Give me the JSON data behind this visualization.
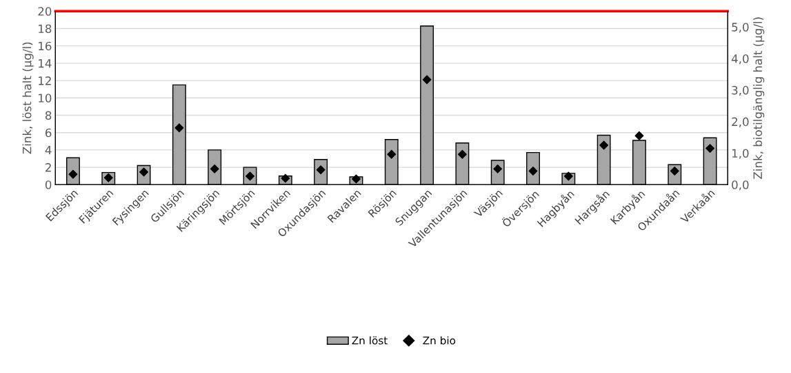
{
  "chart_data": {
    "type": "bar",
    "categories": [
      "Edssjön",
      "Fjäturen",
      "Fysingen",
      "Gullsjön",
      "Käringsjön",
      "Mörtsjön",
      "Norrviken",
      "Oxundasjön",
      "Ravalen",
      "Rösjön",
      "Snuggan",
      "Vallentunasjön",
      "Väsjön",
      "Översjön",
      "Hagbyån",
      "Hargsån",
      "Karbyån",
      "Oxundaån",
      "Verkaån"
    ],
    "series": [
      {
        "name": "Zn löst",
        "color": "#a6a6a6",
        "values": [
          3.1,
          1.4,
          2.2,
          11.5,
          4.0,
          2.0,
          1.0,
          2.9,
          0.9,
          5.2,
          18.3,
          4.8,
          2.8,
          3.7,
          1.3,
          5.7,
          5.1,
          2.3,
          5.4
        ]
      },
      {
        "name": "Zn bio",
        "type": "scatter",
        "axis": "y2",
        "color": "#000000",
        "values": [
          0.33,
          0.22,
          0.4,
          1.8,
          0.5,
          0.27,
          0.2,
          0.47,
          0.18,
          0.96,
          3.33,
          0.96,
          0.5,
          0.43,
          0.27,
          1.25,
          1.55,
          0.43,
          1.15
        ]
      }
    ],
    "ylabel": "Zink, löst halt (µg/l)",
    "y2label": "Zink, biotilgänglig halt (µg/l)",
    "ylim": [
      0,
      20
    ],
    "yticks": [
      0,
      2,
      4,
      6,
      8,
      10,
      12,
      14,
      16,
      18,
      20
    ],
    "y2lim": [
      0,
      5.5
    ],
    "y2ticks": [
      {
        "value": 0,
        "label": "0,0"
      },
      {
        "value": 1,
        "label": "1,0"
      },
      {
        "value": 2,
        "label": "2,0"
      },
      {
        "value": 3,
        "label": "3,0"
      },
      {
        "value": 4,
        "label": "4,0"
      },
      {
        "value": 5,
        "label": "5,0"
      }
    ],
    "ref_lines": [
      {
        "axis": "y",
        "value": 20,
        "color": "#ff0000"
      }
    ],
    "grid": "y",
    "legend": "bottom",
    "marker": "diamond"
  }
}
